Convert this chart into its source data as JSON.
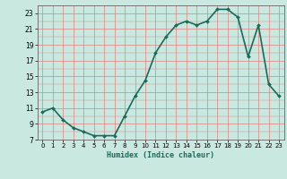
{
  "x": [
    0,
    1,
    2,
    3,
    4,
    5,
    6,
    7,
    8,
    9,
    10,
    11,
    12,
    13,
    14,
    15,
    16,
    17,
    18,
    19,
    20,
    21,
    22,
    23
  ],
  "y": [
    10.5,
    11.0,
    9.5,
    8.5,
    8.0,
    7.5,
    7.5,
    7.5,
    10.0,
    12.5,
    14.5,
    18.0,
    20.0,
    21.5,
    22.0,
    21.5,
    22.0,
    23.5,
    23.5,
    22.5,
    17.5,
    21.5,
    14.0,
    12.5
  ],
  "line_color": "#1a6b5a",
  "marker": "D",
  "markersize": 2,
  "bg_color": "#c8e8e0",
  "grid_color": "#e08080",
  "xlabel": "Humidex (Indice chaleur)",
  "xlim": [
    -0.5,
    23.5
  ],
  "ylim": [
    7,
    24
  ],
  "yticks": [
    7,
    9,
    11,
    13,
    15,
    17,
    19,
    21,
    23
  ],
  "xticks": [
    0,
    1,
    2,
    3,
    4,
    5,
    6,
    7,
    8,
    9,
    10,
    11,
    12,
    13,
    14,
    15,
    16,
    17,
    18,
    19,
    20,
    21,
    22,
    23
  ],
  "linewidth": 1.2
}
